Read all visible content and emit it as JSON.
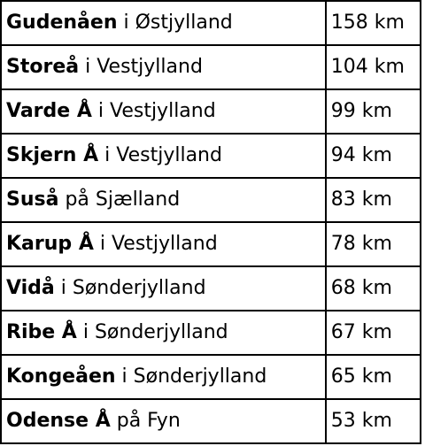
{
  "rivers": [
    {
      "name": "Gudenåen",
      "region": "i Østjylland",
      "length": "158 km"
    },
    {
      "name": "Storeå",
      "region": "i Vestjylland",
      "length": "104 km"
    },
    {
      "name": "Varde Å",
      "region": "i Vestjylland",
      "length": "99 km"
    },
    {
      "name": "Skjern Å",
      "region": "i Vestjylland",
      "length": "94 km"
    },
    {
      "name": "Suså",
      "region": "på Sjælland",
      "length": "83 km"
    },
    {
      "name": "Karup Å",
      "region": "i Vestjylland",
      "length": "78 km"
    },
    {
      "name": "Vidå",
      "region": "i Sønderjylland",
      "length": "68 km"
    },
    {
      "name": "Ribe Å",
      "region": "i Sønderjylland",
      "length": "67 km"
    },
    {
      "name": "Kongeåen",
      "region": "i Sønderjylland",
      "length": "65 km"
    },
    {
      "name": "Odense Å",
      "region": "på Fyn",
      "length": "53 km"
    }
  ]
}
